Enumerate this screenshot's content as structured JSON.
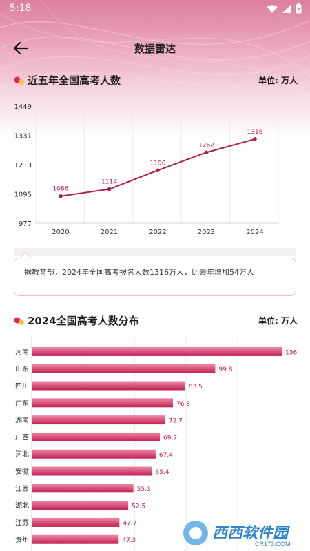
{
  "statusbar": {
    "time": "5:18"
  },
  "appbar": {
    "title": "数据雷达"
  },
  "colors": {
    "accent": "#c21f55",
    "line": "#b11e50",
    "bar_top": "#ed8aa5",
    "bar_bottom": "#c31f52"
  },
  "icons": {
    "back": "arrow-left-icon",
    "wifi": "wifi-icon",
    "signal": "signal-icon",
    "battery": "battery-icon"
  },
  "section1": {
    "title": "近五年全国高考人数",
    "unit": "单位: 万人"
  },
  "note": {
    "text": "据教育部，2024年全国高考报名人数1316万人，比去年增加54万人"
  },
  "section2": {
    "title": "2024全国高考人数分布",
    "unit": "单位: 万人"
  },
  "watermark": {
    "text": "西西软件园",
    "sub": "CR173.COM"
  },
  "chart_data": [
    {
      "type": "line",
      "x": [
        "2020",
        "2021",
        "2022",
        "2023",
        "2024"
      ],
      "values": [
        1086,
        1114,
        1190,
        1262,
        1316
      ],
      "data_labels": [
        "1086",
        "1114",
        "1190",
        "1262",
        "1316"
      ],
      "yticks": [
        "977",
        "1095",
        "1213",
        "1331",
        "1449"
      ],
      "ylim": [
        977,
        1449
      ],
      "grid": "vertical"
    },
    {
      "type": "bar",
      "orientation": "horizontal",
      "categories": [
        "河南",
        "山东",
        "四川",
        "广东",
        "湖南",
        "广西",
        "河北",
        "安徽",
        "江西",
        "湖北",
        "江苏",
        "贵州"
      ],
      "values": [
        136,
        99.8,
        83.5,
        76.8,
        72.7,
        69.7,
        67.4,
        65.4,
        55.3,
        52.5,
        47.7,
        47.3
      ],
      "data_labels": [
        "136",
        "99.8",
        "83.5",
        "76.8",
        "72.7",
        "69.7",
        "67.4",
        "65.4",
        "55.3",
        "52.5",
        "47.7",
        "47.3"
      ],
      "xlim": [
        0,
        140
      ],
      "grid": "vertical"
    }
  ]
}
